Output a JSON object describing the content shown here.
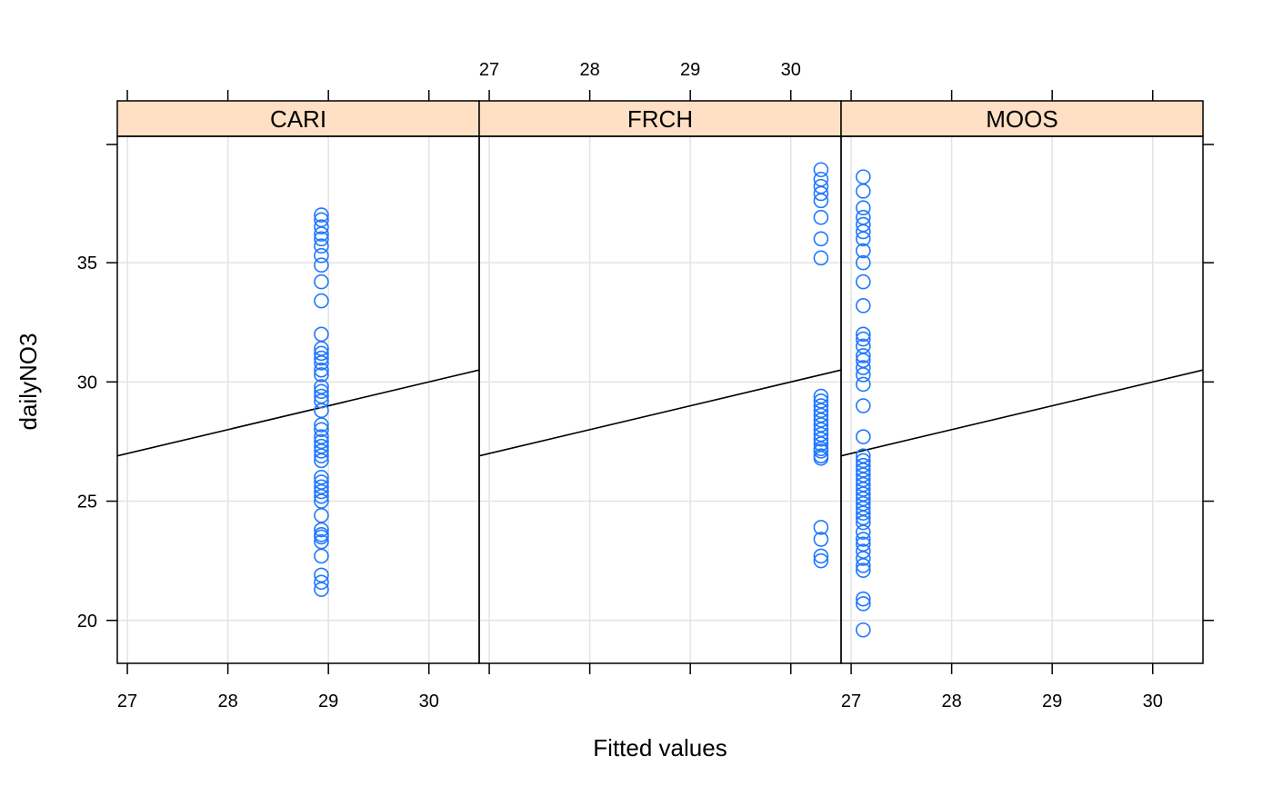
{
  "chart_data": {
    "type": "scatter",
    "xlabel": "Fitted values",
    "ylabel": "dailyNO3",
    "xlim": [
      26.9,
      30.5
    ],
    "ylim": [
      18.2,
      40.3
    ],
    "x_ticks": [
      27,
      28,
      29,
      30
    ],
    "y_ticks": [
      20,
      25,
      30,
      35
    ],
    "grid": true,
    "reference_line": {
      "x": [
        26.9,
        30.5
      ],
      "y": [
        26.9,
        30.5
      ]
    },
    "point_color": "#1f77ff",
    "strip_color": "#ffe0c4",
    "panels": [
      {
        "name": "CARI",
        "fitted": 28.93,
        "values": [
          21.3,
          21.6,
          21.9,
          22.7,
          23.3,
          23.5,
          23.6,
          23.8,
          24.4,
          25.0,
          25.2,
          25.4,
          25.6,
          25.8,
          26.0,
          26.7,
          26.9,
          27.1,
          27.3,
          27.5,
          27.7,
          28.0,
          28.2,
          28.8,
          29.2,
          29.4,
          29.6,
          29.8,
          30.3,
          30.5,
          30.8,
          31.0,
          31.2,
          31.4,
          32.0,
          33.4,
          34.2,
          34.9,
          35.3,
          35.7,
          36.0,
          36.2,
          36.5,
          36.8,
          37.0
        ]
      },
      {
        "name": "FRCH",
        "fitted": 30.3,
        "values": [
          22.5,
          22.7,
          23.4,
          23.9,
          26.8,
          26.9,
          27.1,
          27.2,
          27.4,
          27.6,
          27.8,
          28.0,
          28.2,
          28.4,
          28.6,
          28.8,
          29.0,
          29.2,
          29.4,
          35.2,
          36.0,
          36.9,
          37.6,
          37.9,
          38.2,
          38.5,
          38.9
        ]
      },
      {
        "name": "MOOS",
        "fitted": 27.12,
        "values": [
          19.6,
          20.7,
          20.9,
          22.1,
          22.3,
          22.6,
          22.9,
          23.2,
          23.4,
          23.7,
          24.1,
          24.3,
          24.5,
          24.7,
          24.9,
          25.1,
          25.3,
          25.5,
          25.7,
          25.9,
          26.1,
          26.3,
          26.5,
          26.7,
          26.9,
          27.7,
          29.0,
          29.9,
          30.3,
          30.6,
          30.9,
          31.1,
          31.5,
          31.8,
          32.0,
          33.2,
          34.2,
          35.0,
          35.5,
          36.0,
          36.3,
          36.6,
          36.9,
          37.3,
          38.0,
          38.6
        ]
      }
    ]
  }
}
